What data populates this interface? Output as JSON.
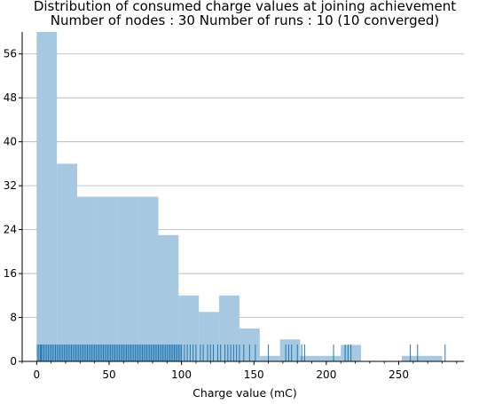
{
  "chart_data": {
    "type": "histogram",
    "title": "Distribution of consumed charge values at joining achievement",
    "subtitle": "Number of nodes : 30   Number of runs : 10 (10 converged)",
    "xlabel": "Charge value (mC)",
    "ylabel": "",
    "xlim": [
      -10,
      295
    ],
    "ylim": [
      0,
      60
    ],
    "x_ticks": [
      0,
      50,
      100,
      150,
      200,
      250
    ],
    "y_ticks": [
      0,
      8,
      16,
      24,
      32,
      40,
      48,
      56
    ],
    "grid": "y",
    "bar_color": "#a6c8e0",
    "rug_color": "#1f77b4",
    "bins": [
      {
        "start": 0,
        "end": 14,
        "count": 60
      },
      {
        "start": 14,
        "end": 28,
        "count": 36
      },
      {
        "start": 28,
        "end": 42,
        "count": 30
      },
      {
        "start": 42,
        "end": 56,
        "count": 30
      },
      {
        "start": 56,
        "end": 70,
        "count": 30
      },
      {
        "start": 70,
        "end": 84,
        "count": 30
      },
      {
        "start": 84,
        "end": 98,
        "count": 23
      },
      {
        "start": 98,
        "end": 112,
        "count": 12
      },
      {
        "start": 112,
        "end": 126,
        "count": 9
      },
      {
        "start": 126,
        "end": 140,
        "count": 12
      },
      {
        "start": 140,
        "end": 154,
        "count": 6
      },
      {
        "start": 154,
        "end": 168,
        "count": 1
      },
      {
        "start": 168,
        "end": 182,
        "count": 4
      },
      {
        "start": 182,
        "end": 196,
        "count": 1
      },
      {
        "start": 196,
        "end": 210,
        "count": 1
      },
      {
        "start": 210,
        "end": 224,
        "count": 3
      },
      {
        "start": 252,
        "end": 266,
        "count": 1
      },
      {
        "start": 266,
        "end": 280,
        "count": 1
      }
    ],
    "rug_values": [
      0.5,
      1.5,
      2.5,
      3.2,
      4,
      5,
      6,
      7,
      8,
      9,
      10,
      11,
      12,
      13,
      14,
      15,
      16,
      17,
      18,
      19,
      20,
      21,
      22,
      23,
      24,
      25,
      26,
      27,
      28,
      29,
      30,
      31,
      32,
      33,
      34,
      35,
      36,
      37,
      38,
      39,
      40,
      41,
      42,
      43,
      44,
      45,
      46,
      47,
      48,
      49,
      50,
      51,
      52,
      53,
      54,
      55,
      56,
      57,
      58,
      59,
      60,
      61,
      62,
      63,
      64,
      65,
      66,
      67,
      68,
      69,
      70,
      71,
      72,
      73,
      74,
      75,
      76,
      77,
      78,
      79,
      80,
      81,
      82,
      83,
      84,
      85,
      86,
      87,
      88,
      89,
      90,
      91,
      92,
      93,
      94,
      95,
      96,
      97,
      98,
      99,
      100,
      102,
      104,
      106,
      108,
      110,
      113,
      115,
      118,
      120,
      122,
      125,
      127,
      130,
      132,
      134,
      136,
      138,
      140,
      143,
      147,
      151,
      160,
      172,
      174,
      176,
      180,
      183,
      185,
      205,
      213,
      215,
      217,
      258,
      263,
      282
    ]
  }
}
